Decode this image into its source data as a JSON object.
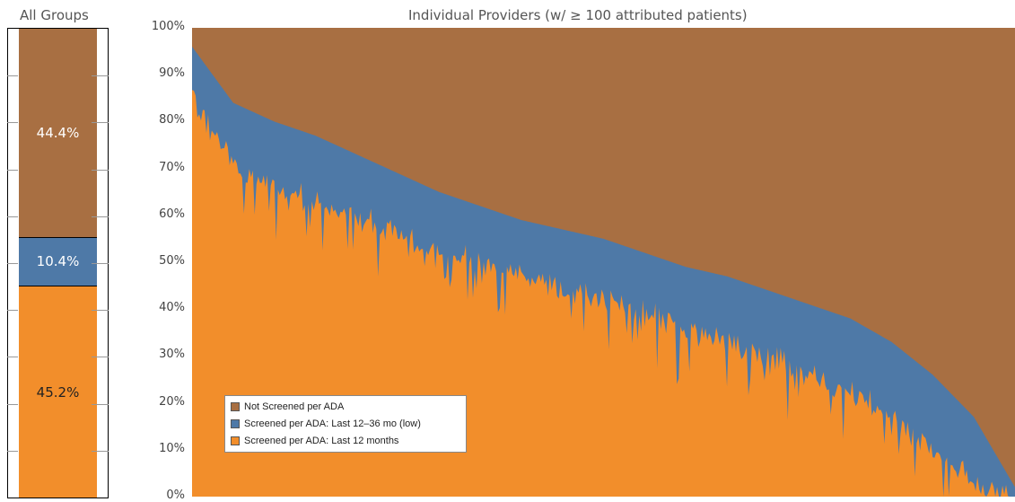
{
  "titles": {
    "left": "All Groups",
    "right": "Individual Providers (w/ ≥ 100 attributed patients)"
  },
  "y_ticks": [
    "100%",
    "90%",
    "80%",
    "70%",
    "60%",
    "50%",
    "40%",
    "30%",
    "20%",
    "10%",
    "0%"
  ],
  "legend": [
    {
      "label": "Not Screened per ADA",
      "color": "#a86f42"
    },
    {
      "label": "Screened per ADA: Last 12–36 mo (low)",
      "color": "#4e79a7"
    },
    {
      "label": "Screened per ADA: Last 12 months",
      "color": "#f28e2b"
    }
  ],
  "chart_data": [
    {
      "type": "bar",
      "title": "All Groups",
      "stacked": true,
      "segments": [
        {
          "name": "Screened per ADA: Last 12 months",
          "value": 45.2,
          "label": "45.2%",
          "color": "#f28e2b"
        },
        {
          "name": "Screened per ADA: Last 12–36 mo (low)",
          "value": 10.4,
          "label": "10.4%",
          "color": "#4e79a7"
        },
        {
          "name": "Not Screened per ADA",
          "value": 44.4,
          "label": "44.4%",
          "color": "#a86f42"
        }
      ],
      "ylim": [
        0,
        100
      ]
    },
    {
      "type": "area",
      "title": "Individual Providers (w/ ≥ 100 attributed patients)",
      "stacked": true,
      "x": [
        0,
        5,
        10,
        15,
        20,
        25,
        30,
        35,
        40,
        45,
        50,
        55,
        60,
        65,
        70,
        75,
        80,
        85,
        90,
        95,
        100
      ],
      "x_unit": "provider rank percentile (unlabeled on chart)",
      "series": [
        {
          "name": "Screened per ADA: Last 12 months",
          "color": "#f28e2b",
          "values": [
            88,
            72,
            68,
            65,
            62,
            58,
            55,
            52,
            49,
            46,
            44,
            41,
            38,
            35,
            32,
            28,
            24,
            19,
            12,
            5,
            1
          ]
        },
        {
          "name": "Screened per ADA: Last 12–36 mo (low)",
          "color": "#4e79a7",
          "values": [
            8,
            12,
            12,
            12,
            11,
            11,
            10,
            10,
            10,
            11,
            11,
            11,
            11,
            12,
            12,
            13,
            14,
            14,
            14,
            12,
            1
          ]
        },
        {
          "name": "Not Screened per ADA",
          "color": "#a86f42",
          "values": [
            4,
            16,
            20,
            23,
            27,
            31,
            35,
            38,
            41,
            43,
            45,
            48,
            51,
            53,
            56,
            59,
            62,
            67,
            74,
            83,
            98
          ]
        }
      ],
      "ylim": [
        0,
        100
      ],
      "ytick_labels": [
        "0%",
        "10%",
        "20%",
        "30%",
        "40%",
        "50%",
        "60%",
        "70%",
        "80%",
        "90%",
        "100%"
      ],
      "legend_position": "bottom-left"
    }
  ]
}
